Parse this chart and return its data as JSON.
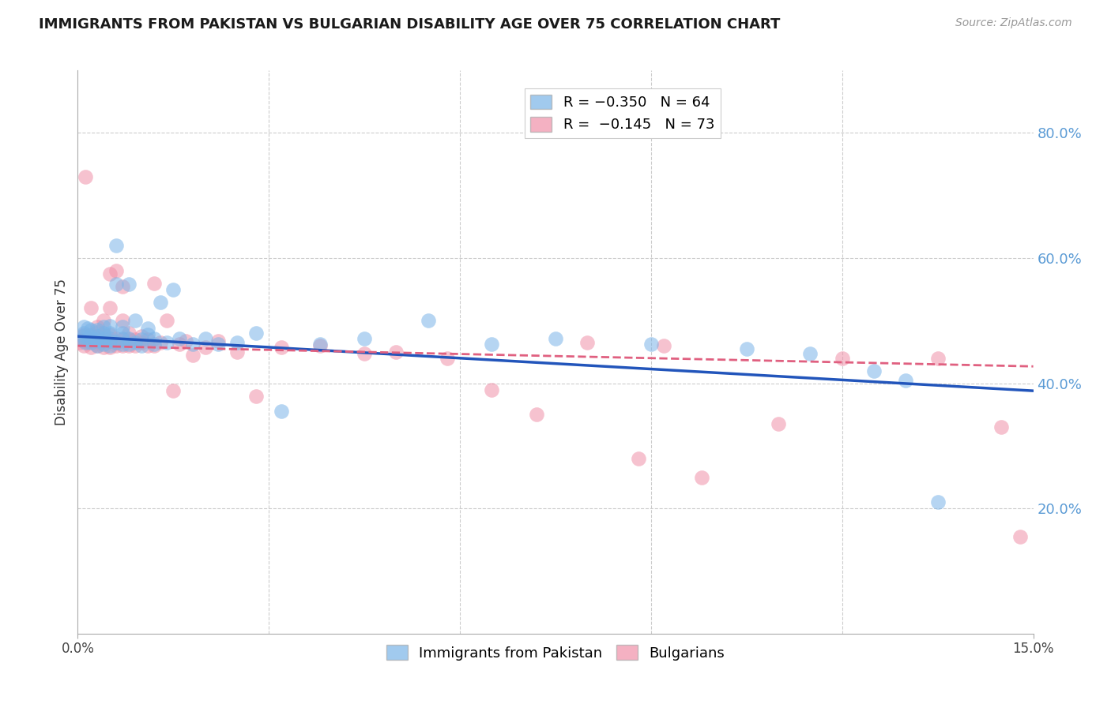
{
  "title": "IMMIGRANTS FROM PAKISTAN VS BULGARIAN DISABILITY AGE OVER 75 CORRELATION CHART",
  "source": "Source: ZipAtlas.com",
  "ylabel": "Disability Age Over 75",
  "xlim": [
    0.0,
    0.15
  ],
  "ylim": [
    0.0,
    0.9
  ],
  "yticks": [
    0.2,
    0.4,
    0.6,
    0.8
  ],
  "ytick_labels": [
    "20.0%",
    "40.0%",
    "60.0%",
    "80.0%"
  ],
  "xticks": [
    0.0,
    0.15
  ],
  "xtick_labels": [
    "0.0%",
    "15.0%"
  ],
  "right_ytick_color": "#5b9bd5",
  "pakistan_color": "#7ab4e8",
  "bulgarian_color": "#f090a8",
  "pakistan_line_color": "#2255bb",
  "bulgarian_line_color": "#e06080",
  "pakistan_intercept": 0.475,
  "pakistan_slope": -0.58,
  "bulgarian_intercept": 0.46,
  "bulgarian_slope": -0.22,
  "pakistan_x": [
    0.0005,
    0.0008,
    0.001,
    0.001,
    0.0012,
    0.0015,
    0.0015,
    0.002,
    0.002,
    0.002,
    0.0025,
    0.003,
    0.003,
    0.003,
    0.003,
    0.0035,
    0.004,
    0.004,
    0.004,
    0.004,
    0.005,
    0.005,
    0.005,
    0.005,
    0.005,
    0.006,
    0.006,
    0.006,
    0.007,
    0.007,
    0.007,
    0.007,
    0.008,
    0.008,
    0.008,
    0.009,
    0.009,
    0.01,
    0.01,
    0.011,
    0.011,
    0.012,
    0.012,
    0.013,
    0.014,
    0.015,
    0.016,
    0.018,
    0.02,
    0.022,
    0.025,
    0.028,
    0.032,
    0.038,
    0.045,
    0.055,
    0.065,
    0.075,
    0.09,
    0.105,
    0.115,
    0.125,
    0.13,
    0.135
  ],
  "pakistan_y": [
    0.47,
    0.475,
    0.48,
    0.49,
    0.465,
    0.472,
    0.488,
    0.465,
    0.475,
    0.485,
    0.47,
    0.46,
    0.47,
    0.475,
    0.485,
    0.468,
    0.462,
    0.472,
    0.48,
    0.49,
    0.46,
    0.468,
    0.472,
    0.48,
    0.492,
    0.62,
    0.465,
    0.558,
    0.462,
    0.472,
    0.48,
    0.49,
    0.462,
    0.472,
    0.558,
    0.465,
    0.5,
    0.46,
    0.47,
    0.478,
    0.488,
    0.462,
    0.472,
    0.53,
    0.465,
    0.55,
    0.472,
    0.462,
    0.472,
    0.462,
    0.465,
    0.48,
    0.355,
    0.462,
    0.472,
    0.5,
    0.462,
    0.472,
    0.462,
    0.455,
    0.448,
    0.42,
    0.405,
    0.21
  ],
  "bulgarian_x": [
    0.0003,
    0.0005,
    0.0007,
    0.001,
    0.001,
    0.001,
    0.0012,
    0.0015,
    0.002,
    0.002,
    0.002,
    0.002,
    0.0025,
    0.003,
    0.003,
    0.003,
    0.003,
    0.003,
    0.0035,
    0.004,
    0.004,
    0.004,
    0.004,
    0.005,
    0.005,
    0.005,
    0.005,
    0.005,
    0.006,
    0.006,
    0.006,
    0.006,
    0.007,
    0.007,
    0.007,
    0.007,
    0.008,
    0.008,
    0.008,
    0.009,
    0.009,
    0.01,
    0.01,
    0.011,
    0.011,
    0.012,
    0.012,
    0.013,
    0.014,
    0.015,
    0.016,
    0.017,
    0.018,
    0.02,
    0.022,
    0.025,
    0.028,
    0.032,
    0.038,
    0.045,
    0.05,
    0.058,
    0.065,
    0.072,
    0.08,
    0.088,
    0.092,
    0.098,
    0.11,
    0.12,
    0.135,
    0.145,
    0.148
  ],
  "bulgarian_y": [
    0.465,
    0.47,
    0.475,
    0.46,
    0.468,
    0.478,
    0.73,
    0.465,
    0.458,
    0.468,
    0.478,
    0.52,
    0.465,
    0.46,
    0.468,
    0.475,
    0.482,
    0.49,
    0.465,
    0.458,
    0.468,
    0.478,
    0.5,
    0.458,
    0.468,
    0.478,
    0.52,
    0.575,
    0.46,
    0.465,
    0.472,
    0.58,
    0.46,
    0.47,
    0.5,
    0.555,
    0.46,
    0.47,
    0.48,
    0.46,
    0.47,
    0.465,
    0.475,
    0.46,
    0.47,
    0.56,
    0.46,
    0.465,
    0.5,
    0.388,
    0.462,
    0.468,
    0.445,
    0.458,
    0.468,
    0.45,
    0.38,
    0.458,
    0.46,
    0.448,
    0.45,
    0.44,
    0.39,
    0.35,
    0.465,
    0.28,
    0.46,
    0.25,
    0.335,
    0.44,
    0.44,
    0.33,
    0.155
  ]
}
